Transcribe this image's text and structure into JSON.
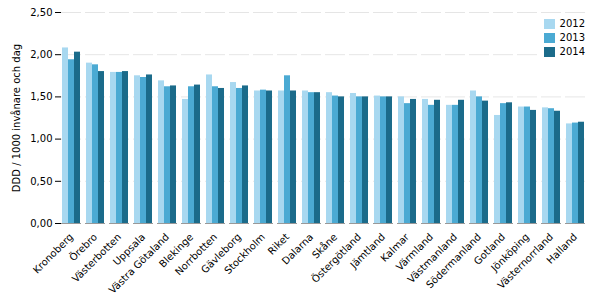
{
  "chart_data": {
    "type": "bar",
    "categories": [
      "Kronoberg",
      "Örebro",
      "Västerbotten",
      "Uppsala",
      "Västra Götaland",
      "Blekinge",
      "Norrbotten",
      "Gävleborg",
      "Stockholm",
      "Riket",
      "Dalarna",
      "Skåne",
      "Östergötland",
      "Jämtland",
      "Kalmar",
      "Värmland",
      "Västmanland",
      "Södermanland",
      "Gotland",
      "Jönköping",
      "Västernorrland",
      "Halland"
    ],
    "series": [
      {
        "name": "2012",
        "color": "#A8D8F0",
        "values": [
          2.08,
          1.9,
          1.79,
          1.75,
          1.69,
          1.47,
          1.76,
          1.67,
          1.57,
          1.57,
          1.57,
          1.55,
          1.54,
          1.51,
          1.5,
          1.47,
          1.4,
          1.57,
          1.28,
          1.38,
          1.37,
          1.18
        ]
      },
      {
        "name": "2013",
        "color": "#4BAAD3",
        "values": [
          1.94,
          1.88,
          1.79,
          1.73,
          1.62,
          1.62,
          1.62,
          1.6,
          1.58,
          1.75,
          1.55,
          1.51,
          1.5,
          1.5,
          1.42,
          1.4,
          1.4,
          1.5,
          1.42,
          1.38,
          1.36,
          1.19
        ]
      },
      {
        "name": "2014",
        "color": "#1B6B8A",
        "values": [
          2.03,
          1.8,
          1.8,
          1.76,
          1.63,
          1.64,
          1.6,
          1.63,
          1.57,
          1.57,
          1.55,
          1.5,
          1.5,
          1.5,
          1.47,
          1.46,
          1.46,
          1.45,
          1.43,
          1.34,
          1.33,
          1.2
        ]
      }
    ],
    "ylabel": "DDD / 1000 invånare och dag",
    "ylim": [
      0,
      2.5
    ],
    "yticks": [
      {
        "value": 0,
        "label": "0,00"
      },
      {
        "value": 0.5,
        "label": "0,50"
      },
      {
        "value": 1,
        "label": "1,00"
      },
      {
        "value": 1.5,
        "label": "1,50"
      },
      {
        "value": 2,
        "label": "2,00"
      },
      {
        "value": 2.5,
        "label": "2,50"
      }
    ],
    "grid": true,
    "legend": "upper right"
  }
}
